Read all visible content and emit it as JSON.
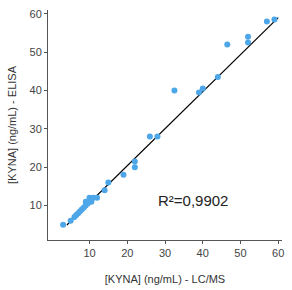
{
  "chart_data": {
    "type": "scatter",
    "x_label": "[KYNA] (ng/mL) - LC/MS",
    "y_label": "[KYNA] (ng/mL) - ELISA",
    "annotations": [
      "R²=0,9902"
    ],
    "xlim": [
      -1,
      61
    ],
    "ylim": [
      1,
      61
    ],
    "xticks": [
      10,
      20,
      30,
      40,
      50,
      60
    ],
    "yticks": [
      10,
      20,
      30,
      40,
      50,
      60
    ],
    "grid": false,
    "series": [
      {
        "type": "scatter",
        "marker": "circle",
        "color": "#4da6e8",
        "x": [
          3,
          5,
          6,
          6.5,
          7,
          7.5,
          8,
          8.5,
          9,
          9.5,
          10,
          10,
          10.5,
          11,
          9,
          12,
          14,
          15,
          19,
          22,
          22,
          26,
          28,
          32.5,
          39,
          40,
          44,
          46.5,
          52,
          52,
          57,
          59
        ],
        "values": [
          5,
          6,
          7,
          7.5,
          8,
          8.5,
          9,
          9.5,
          10,
          10.5,
          11,
          12,
          11,
          12,
          11,
          12,
          14,
          16,
          18,
          20,
          21.5,
          28,
          28,
          40,
          39.5,
          40.5,
          43.5,
          52,
          52.5,
          54,
          58,
          58.5
        ]
      },
      {
        "type": "line",
        "line_style": "solid",
        "color": "#000000",
        "x": [
          4,
          60
        ],
        "values": [
          4.9,
          59
        ]
      }
    ]
  }
}
